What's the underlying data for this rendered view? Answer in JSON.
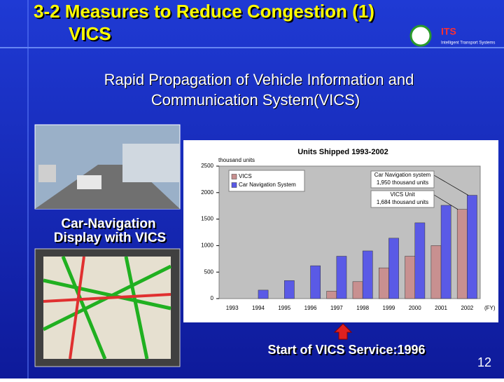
{
  "slide": {
    "title_line1": "3-2 Measures to Reduce Congestion (1)",
    "title_line2": "VICS",
    "logo": "ITS",
    "logo_sub": "Intelligent Transport Systems",
    "subtitle_line1": "Rapid Propagation of Vehicle Information and",
    "subtitle_line2": "Communication System(VICS)",
    "caption_line1": "Car-Navigation",
    "caption_line2": "Display with VICS",
    "note": "Start of VICS Service:1996",
    "page": "12"
  },
  "chart_data": {
    "type": "bar",
    "title": "Units Shipped 1993-2002",
    "y_label": "thousand units",
    "x_label": "(FY)",
    "categories": [
      "1993",
      "1994",
      "1995",
      "1996",
      "1997",
      "1998",
      "1999",
      "2000",
      "2001",
      "2002"
    ],
    "series": [
      {
        "name": "VICS",
        "color": "#c89090",
        "values": [
          null,
          null,
          null,
          null,
          140,
          320,
          580,
          800,
          1000,
          1684
        ]
      },
      {
        "name": "Car Navigation System",
        "color": "#5a5ae6",
        "values": [
          null,
          160,
          340,
          620,
          800,
          900,
          1140,
          1430,
          1760,
          1950
        ]
      }
    ],
    "ylim": [
      0,
      2500
    ],
    "yticks": [
      0,
      500,
      1000,
      1500,
      2000,
      2500
    ],
    "grid": false,
    "annotations": [
      {
        "text": [
          "Car Navigation system",
          "1,950 thousand units"
        ]
      },
      {
        "text": [
          "VICS Unit",
          "1,684 thousand units"
        ]
      }
    ]
  }
}
